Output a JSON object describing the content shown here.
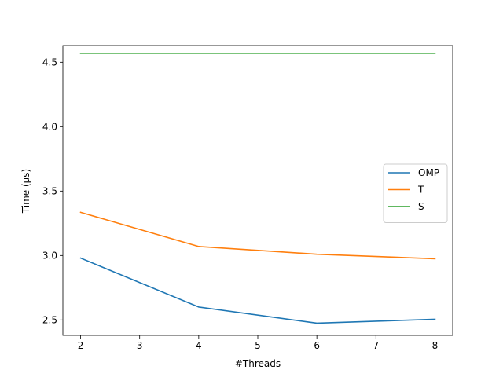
{
  "chart_data": {
    "type": "line",
    "title": "",
    "xlabel": "#Threads",
    "ylabel": "Time (μs)",
    "xlim": [
      1.7,
      8.3
    ],
    "ylim": [
      2.38,
      4.63
    ],
    "xticks": [
      2,
      3,
      4,
      5,
      6,
      7,
      8
    ],
    "yticks": [
      2.5,
      3.0,
      3.5,
      4.0,
      4.5
    ],
    "grid": false,
    "legend_position": "center-right",
    "x": [
      2,
      4,
      6,
      8
    ],
    "series": [
      {
        "name": "OMP",
        "color": "#1f77b4",
        "values": [
          2.98,
          2.6,
          2.475,
          2.505
        ]
      },
      {
        "name": "T",
        "color": "#ff7f0e",
        "values": [
          3.335,
          3.07,
          3.01,
          2.975
        ]
      },
      {
        "name": "S",
        "color": "#2ca02c",
        "values": [
          4.57,
          4.57,
          4.57,
          4.57
        ]
      }
    ]
  }
}
